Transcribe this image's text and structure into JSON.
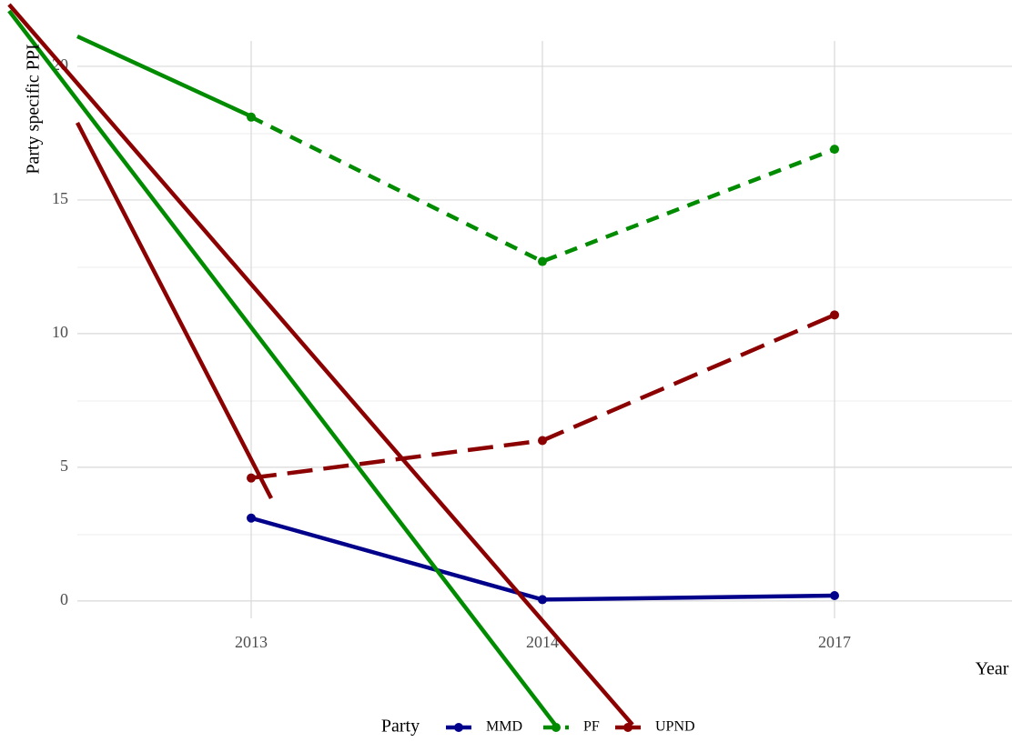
{
  "chart_data": {
    "type": "line",
    "y_label": "Party specific PPI",
    "x_label": "Year",
    "legend_title": "Party",
    "categories": [
      "2013",
      "2014",
      "2017"
    ],
    "series": [
      {
        "name": "MMD",
        "color": "#00008b",
        "linestyle": "solid",
        "values": [
          3.1,
          0.05,
          0.2
        ]
      },
      {
        "name": "PF",
        "color": "#008b00",
        "linestyle": "dotted",
        "values": [
          18.1,
          12.7,
          16.9
        ]
      },
      {
        "name": "UPND",
        "color": "#8b0000",
        "linestyle": "dashed",
        "values": [
          4.6,
          6.0,
          10.7
        ]
      }
    ],
    "ylim": [
      -0.65,
      20.95
    ],
    "yticks": [
      0,
      5,
      10,
      15,
      20
    ],
    "grid": true,
    "legend": "bottom"
  }
}
